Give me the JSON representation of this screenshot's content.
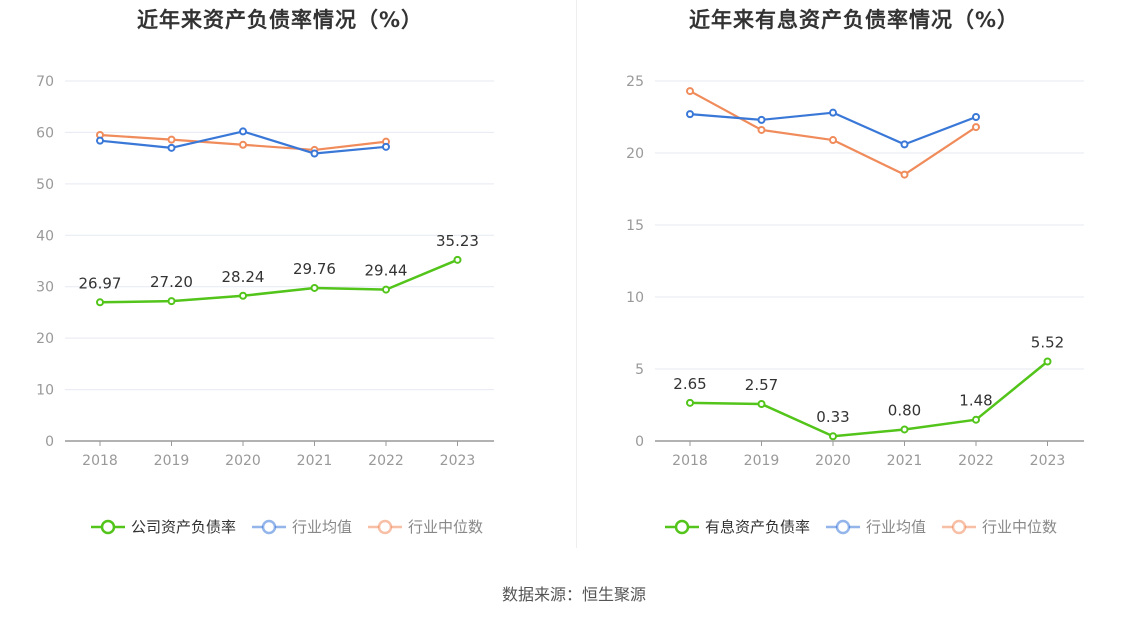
{
  "source": "数据来源：恒生聚源",
  "chart_data": [
    {
      "type": "line",
      "title": "近年来资产负债率情况（%）",
      "categories": [
        "2018",
        "2019",
        "2020",
        "2021",
        "2022",
        "2023"
      ],
      "ylim": [
        0,
        70
      ],
      "yticks": [
        0,
        10,
        20,
        30,
        40,
        50,
        60,
        70
      ],
      "grid": true,
      "legend": "bottom",
      "series": [
        {
          "name": "公司资产负债率",
          "color": "#52c41a",
          "values": [
            26.97,
            27.2,
            28.24,
            29.76,
            29.44,
            35.23
          ],
          "labels": [
            "26.97",
            "27.20",
            "28.24",
            "29.76",
            "29.44",
            "35.23"
          ]
        },
        {
          "name": "行业均值",
          "color": "#3a78d8",
          "values": [
            58.4,
            57.0,
            60.2,
            55.9,
            57.2,
            null
          ],
          "labels": []
        },
        {
          "name": "行业中位数",
          "color": "#f08b5b",
          "values": [
            59.5,
            58.6,
            57.6,
            56.6,
            58.2,
            null
          ],
          "labels": []
        }
      ]
    },
    {
      "type": "line",
      "title": "近年来有息资产负债率情况（%）",
      "categories": [
        "2018",
        "2019",
        "2020",
        "2021",
        "2022",
        "2023"
      ],
      "ylim": [
        0,
        25
      ],
      "yticks": [
        0,
        5,
        10,
        15,
        20,
        25
      ],
      "grid": true,
      "legend": "bottom",
      "series": [
        {
          "name": "有息资产负债率",
          "color": "#52c41a",
          "values": [
            2.65,
            2.57,
            0.33,
            0.8,
            1.48,
            5.52
          ],
          "labels": [
            "2.65",
            "2.57",
            "0.33",
            "0.80",
            "1.48",
            "5.52"
          ]
        },
        {
          "name": "行业均值",
          "color": "#3a78d8",
          "values": [
            22.7,
            22.3,
            22.8,
            20.6,
            22.5,
            null
          ],
          "labels": []
        },
        {
          "name": "行业中位数",
          "color": "#f08b5b",
          "values": [
            24.3,
            21.6,
            20.9,
            18.5,
            21.8,
            null
          ],
          "labels": []
        }
      ]
    }
  ]
}
